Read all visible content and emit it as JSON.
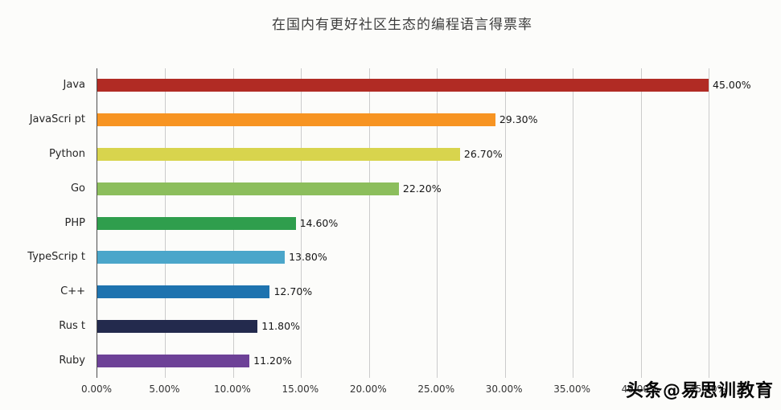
{
  "chart": {
    "watermark": "头条@易思训教育"
  },
  "chart_data": {
    "type": "bar",
    "orientation": "horizontal",
    "title": "在国内有更好社区生态的编程语言得票率",
    "categories": [
      "Java",
      "JavaScri pt",
      "Python",
      "Go",
      "PHP",
      "TypeScrip t",
      "C++",
      "Rus t",
      "Ruby"
    ],
    "values": [
      45.0,
      29.3,
      26.7,
      22.2,
      14.6,
      13.8,
      12.7,
      11.8,
      11.2
    ],
    "value_labels": [
      "45.00%",
      "29.30%",
      "26.70%",
      "22.20%",
      "14.60%",
      "13.80%",
      "12.70%",
      "11.80%",
      "11.20%"
    ],
    "bar_colors": [
      "#b12b24",
      "#f79422",
      "#d8d44d",
      "#8cbe5c",
      "#2f9e4d",
      "#4ba6ca",
      "#1e73af",
      "#232a4d",
      "#6d4197"
    ],
    "xlabel": "",
    "ylabel": "",
    "xlim": [
      0,
      45
    ],
    "x_tick_values": [
      0,
      5,
      10,
      15,
      20,
      25,
      30,
      35,
      40,
      45
    ],
    "x_tick_labels": [
      "0.00%",
      "5.00%",
      "10.00%",
      "15.00%",
      "20.00%",
      "25.00%",
      "30.00%",
      "35.00%",
      "40.00%",
      "45.00%"
    ],
    "grid": true,
    "legend": false
  }
}
